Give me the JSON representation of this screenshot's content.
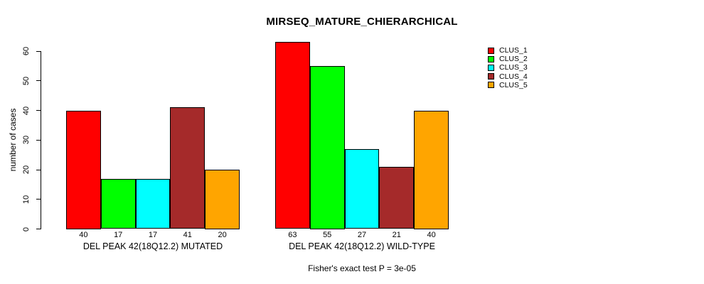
{
  "chart_data": {
    "type": "bar",
    "title": "MIRSEQ_MATURE_CHIERARCHICAL",
    "ylabel": "number of cases",
    "xlabel": "",
    "ylim": [
      0,
      60
    ],
    "yticks": [
      0,
      10,
      20,
      30,
      40,
      50,
      60
    ],
    "grid": false,
    "legend_position": "top-right",
    "categories": [
      "DEL PEAK 42(18Q12.2) MUTATED",
      "DEL PEAK 42(18Q12.2) WILD-TYPE"
    ],
    "series": [
      {
        "name": "CLUS_1",
        "color": "#FF0000",
        "values": [
          40,
          63
        ]
      },
      {
        "name": "CLUS_2",
        "color": "#00FF00",
        "values": [
          17,
          55
        ]
      },
      {
        "name": "CLUS_3",
        "color": "#00FFFF",
        "values": [
          17,
          27
        ]
      },
      {
        "name": "CLUS_4",
        "color": "#A52A2A",
        "values": [
          41,
          21
        ]
      },
      {
        "name": "CLUS_5",
        "color": "#FFA500",
        "values": [
          20,
          40
        ]
      }
    ],
    "bar_labels": [
      [
        40,
        17,
        17,
        41,
        20
      ],
      [
        63,
        55,
        27,
        21,
        40
      ]
    ],
    "caption": "Fisher's exact test P = 3e-05",
    "colors": {
      "bar_border": "#000000",
      "axis": "#000000",
      "text": "#000000",
      "background": "#FFFFFF"
    }
  }
}
